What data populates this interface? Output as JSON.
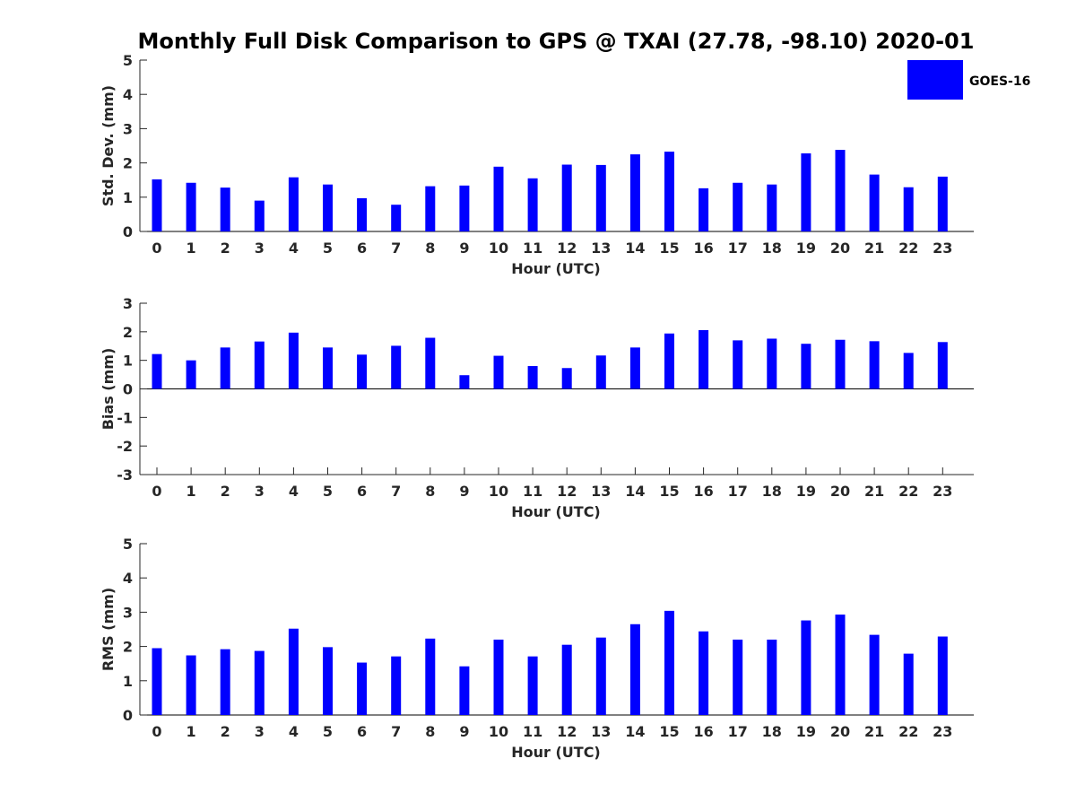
{
  "figure": {
    "title": "Monthly Full Disk Comparison to GPS @ TXAI (27.78, -98.10) 2020-01"
  },
  "legend": {
    "label": "GOES-16",
    "color": "#0000ff",
    "placement": "top-right"
  },
  "chart_data": [
    {
      "type": "bar",
      "name": "std-dev",
      "xlabel": "Hour (UTC)",
      "ylabel": "Std. Dev. (mm)",
      "ylim": [
        0,
        5
      ],
      "yticks": [
        "0",
        "1",
        "2",
        "3",
        "4",
        "5"
      ],
      "categories": [
        "0",
        "1",
        "2",
        "3",
        "4",
        "5",
        "6",
        "7",
        "8",
        "9",
        "10",
        "11",
        "12",
        "13",
        "14",
        "15",
        "16",
        "17",
        "18",
        "19",
        "20",
        "21",
        "22",
        "23"
      ],
      "series": [
        {
          "name": "GOES-16",
          "color": "#0000ff",
          "values": [
            1.52,
            1.42,
            1.28,
            0.9,
            1.58,
            1.37,
            0.97,
            0.78,
            1.32,
            1.34,
            1.89,
            1.55,
            1.95,
            1.94,
            2.25,
            2.33,
            1.26,
            1.42,
            1.37,
            2.28,
            2.38,
            1.66,
            1.29,
            1.6
          ]
        }
      ],
      "grid": false
    },
    {
      "type": "bar",
      "name": "bias",
      "xlabel": "Hour (UTC)",
      "ylabel": "Bias (mm)",
      "ylim": [
        -3,
        3
      ],
      "yticks": [
        "-3",
        "-2",
        "-1",
        "0",
        "1",
        "2",
        "3"
      ],
      "categories": [
        "0",
        "1",
        "2",
        "3",
        "4",
        "5",
        "6",
        "7",
        "8",
        "9",
        "10",
        "11",
        "12",
        "13",
        "14",
        "15",
        "16",
        "17",
        "18",
        "19",
        "20",
        "21",
        "22",
        "23"
      ],
      "series": [
        {
          "name": "GOES-16",
          "color": "#0000ff",
          "values": [
            1.22,
            1.0,
            1.45,
            1.66,
            1.97,
            1.45,
            1.2,
            1.51,
            1.79,
            0.48,
            1.16,
            0.8,
            0.73,
            1.17,
            1.45,
            1.94,
            2.06,
            1.7,
            1.76,
            1.58,
            1.72,
            1.67,
            1.26,
            1.64
          ]
        }
      ],
      "grid": false
    },
    {
      "type": "bar",
      "name": "rms",
      "xlabel": "Hour (UTC)",
      "ylabel": "RMS (mm)",
      "ylim": [
        0,
        5
      ],
      "yticks": [
        "0",
        "1",
        "2",
        "3",
        "4",
        "5"
      ],
      "categories": [
        "0",
        "1",
        "2",
        "3",
        "4",
        "5",
        "6",
        "7",
        "8",
        "9",
        "10",
        "11",
        "12",
        "13",
        "14",
        "15",
        "16",
        "17",
        "18",
        "19",
        "20",
        "21",
        "22",
        "23"
      ],
      "series": [
        {
          "name": "GOES-16",
          "color": "#0000ff",
          "values": [
            1.95,
            1.74,
            1.92,
            1.87,
            2.52,
            1.98,
            1.53,
            1.71,
            2.23,
            1.42,
            2.2,
            1.71,
            2.05,
            2.26,
            2.65,
            3.04,
            2.44,
            2.2,
            2.2,
            2.76,
            2.93,
            2.34,
            1.79,
            2.29
          ]
        }
      ],
      "grid": false
    }
  ]
}
